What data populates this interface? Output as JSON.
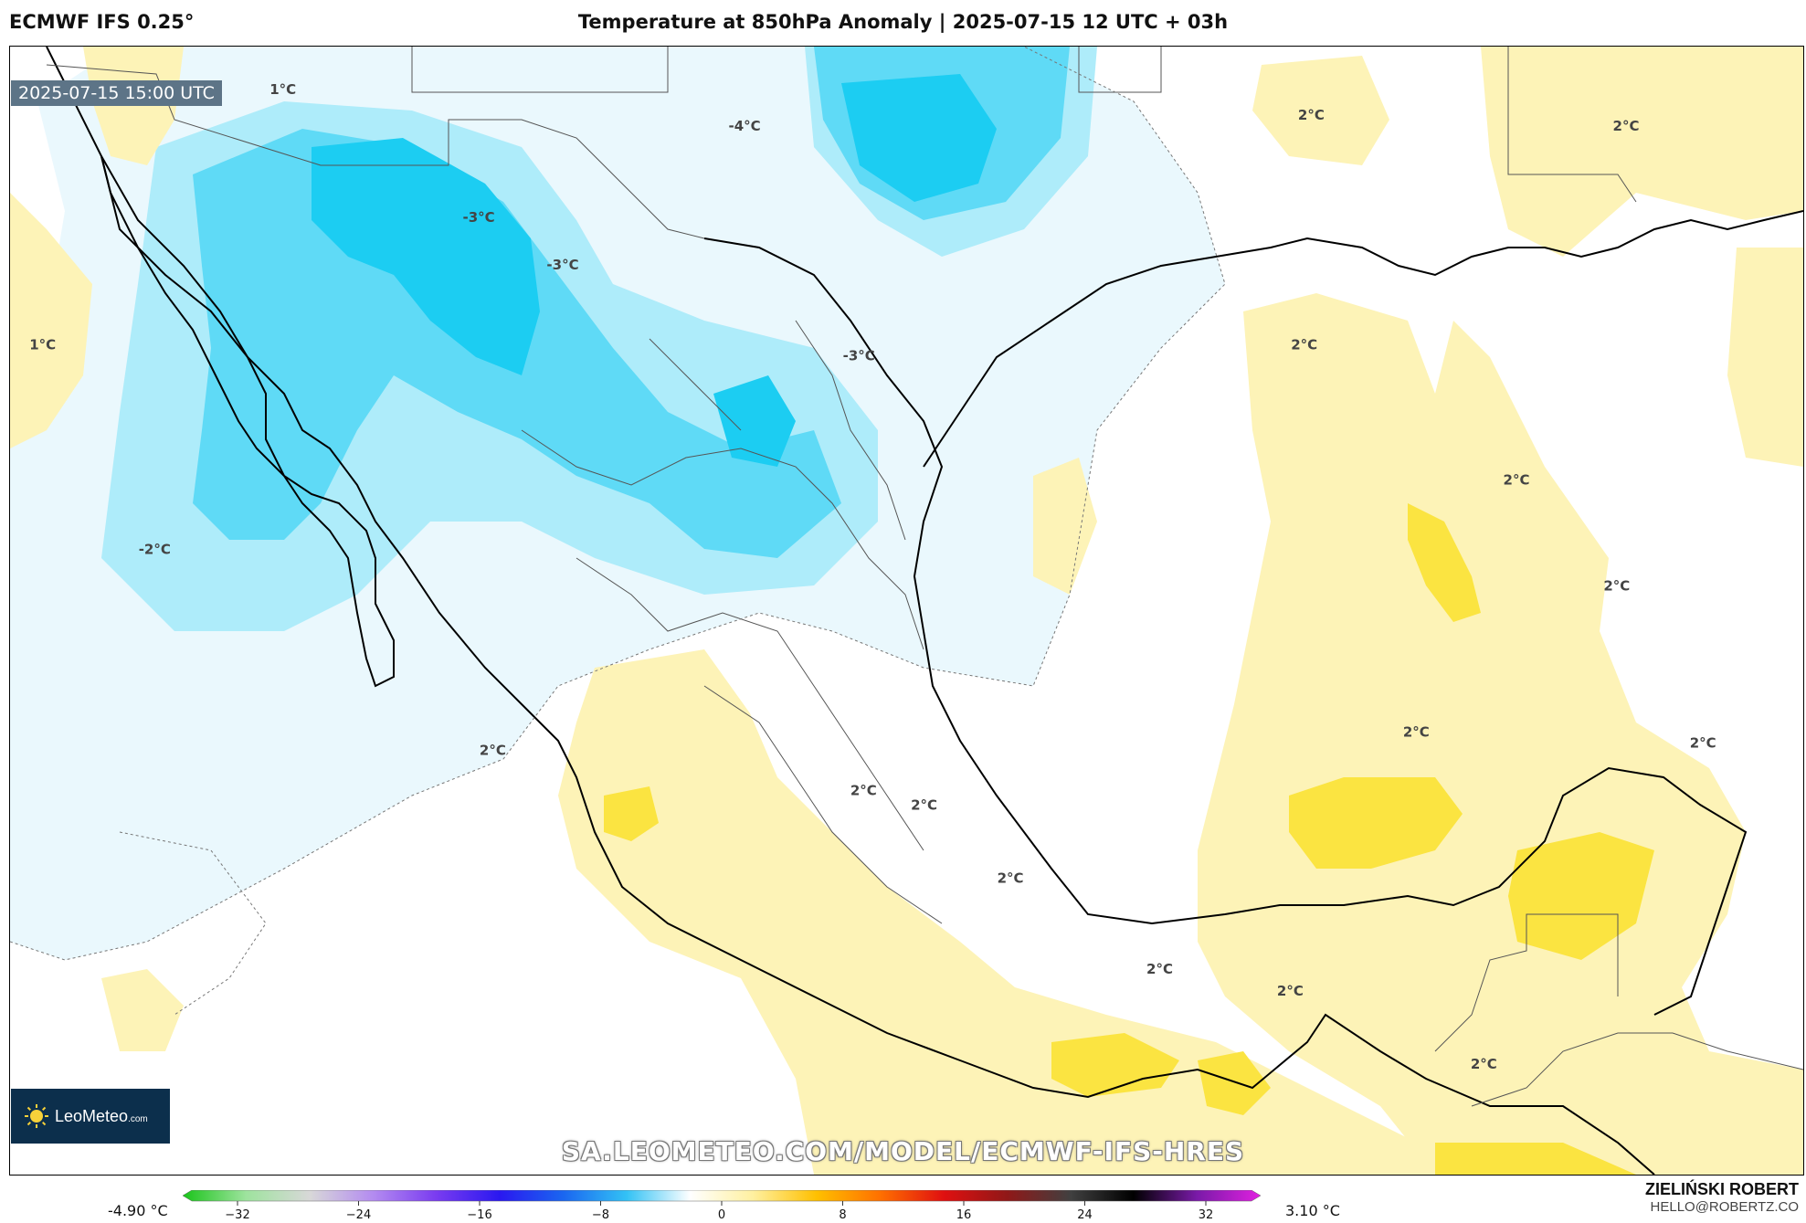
{
  "header": {
    "model": "ECMWF IFS 0.25°",
    "title": "Temperature at 850hPa Anomaly | 2025-07-15 12 UTC + 03h"
  },
  "map": {
    "valid_time": "2025-07-15 15:00 UTC",
    "contour_labels": [
      {
        "text": "1°C",
        "x": -119.5,
        "y": 34.6
      },
      {
        "text": "1°C",
        "x": -129.8,
        "y": 27.6
      },
      {
        "text": "-2°C",
        "x": -125.0,
        "y": 22.0
      },
      {
        "text": "-3°C",
        "x": -111.1,
        "y": 31.1
      },
      {
        "text": "-3°C",
        "x": -107.5,
        "y": 29.8
      },
      {
        "text": "-4°C",
        "x": -99.7,
        "y": 33.6
      },
      {
        "text": "-3°C",
        "x": -94.8,
        "y": 27.3
      },
      {
        "text": "2°C",
        "x": -75.4,
        "y": 33.9
      },
      {
        "text": "2°C",
        "x": -61.9,
        "y": 33.6
      },
      {
        "text": "2°C",
        "x": -75.7,
        "y": 27.6
      },
      {
        "text": "2°C",
        "x": -66.6,
        "y": 23.9
      },
      {
        "text": "2°C",
        "x": -62.3,
        "y": 21.0
      },
      {
        "text": "2°C",
        "x": -110.5,
        "y": 16.5
      },
      {
        "text": "2°C",
        "x": -94.6,
        "y": 15.4
      },
      {
        "text": "2°C",
        "x": -92.0,
        "y": 15.0
      },
      {
        "text": "2°C",
        "x": -70.9,
        "y": 17.0
      },
      {
        "text": "2°C",
        "x": -58.6,
        "y": 16.7
      },
      {
        "text": "2°C",
        "x": -88.3,
        "y": 13.0
      },
      {
        "text": "2°C",
        "x": -81.9,
        "y": 10.5
      },
      {
        "text": "2°C",
        "x": -76.3,
        "y": 9.9
      },
      {
        "text": "2°C",
        "x": -68.0,
        "y": 7.9
      }
    ],
    "colors": {
      "cold_1": "#eaf8fd",
      "cold_2": "#aeecfa",
      "cold_3": "#5fdaf6",
      "cold_4": "#1ccdf2",
      "warm_1": "#fdf3b7",
      "warm_2": "#fbe441",
      "coast": "#000000",
      "border": "#555555"
    }
  },
  "watermark": "SA.LEOMETEO.COM/MODEL/ECMWF-IFS-HRES",
  "logo": {
    "name": "LeoMeteo",
    "suffix": ".com"
  },
  "author": {
    "name": "ZIELIŃSKI ROBERT",
    "email": "HELLO@ROBERTZ.CO"
  },
  "colorbar": {
    "min_label": "-4.90 °C",
    "max_label": "3.10 °C",
    "ticks": [
      "−32",
      "−24",
      "−16",
      "−8",
      "0",
      "8",
      "16",
      "24",
      "32"
    ],
    "stops": [
      "#1ac41a",
      "#9ee39e",
      "#d8d8d8",
      "#b48cf0",
      "#7a3cf0",
      "#2a18f0",
      "#1a66f0",
      "#33c2f5",
      "#ffffff",
      "#fff0a0",
      "#ffc000",
      "#ff7000",
      "#e01010",
      "#901818",
      "#404040",
      "#000000",
      "#7a1aa8",
      "#e020e0"
    ]
  }
}
